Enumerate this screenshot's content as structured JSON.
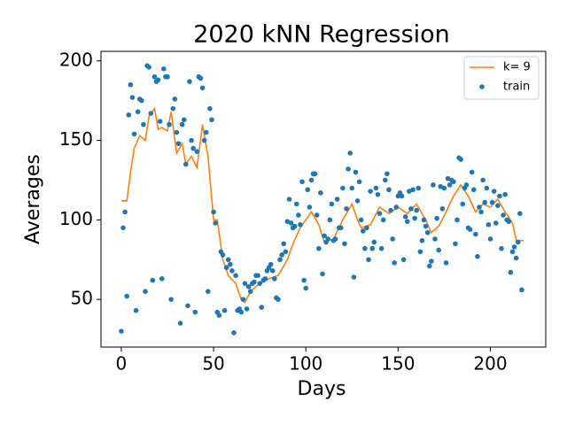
{
  "chart_data": {
    "type": "scatter",
    "title": "2020 kNN Regression",
    "x_label": "Days",
    "y_label": "Averages",
    "xlim": [
      -11,
      230
    ],
    "ylim": [
      20,
      206
    ],
    "xticks": [
      0,
      50,
      100,
      150,
      200
    ],
    "yticks": [
      50,
      100,
      150,
      200
    ],
    "legend": "upper right",
    "series": [
      {
        "name": "k= 9",
        "color": "#ff7f0e",
        "type": "line",
        "x": [
          0,
          3,
          5,
          7,
          10,
          13,
          15,
          18,
          20,
          22,
          25,
          27,
          30,
          33,
          35,
          38,
          41,
          44,
          47,
          50,
          52,
          55,
          58,
          62,
          65,
          67,
          70,
          75,
          80,
          85,
          90,
          93,
          97,
          100,
          103,
          107,
          110,
          115,
          120,
          125,
          128,
          130,
          135,
          140,
          145,
          150,
          155,
          160,
          165,
          168,
          172,
          176,
          180,
          184,
          188,
          192,
          196,
          200,
          204,
          208,
          212,
          214,
          218
        ],
        "values": [
          112,
          112,
          130,
          145,
          153,
          150,
          165,
          170,
          157,
          158,
          156,
          168,
          142,
          148,
          135,
          140,
          133,
          160,
          140,
          100,
          100,
          75,
          65,
          60,
          50,
          48,
          55,
          60,
          63,
          65,
          75,
          85,
          95,
          100,
          105,
          97,
          86,
          88,
          100,
          110,
          100,
          95,
          97,
          108,
          104,
          108,
          104,
          110,
          100,
          92,
          96,
          105,
          115,
          122,
          115,
          105,
          110,
          108,
          113,
          105,
          98,
          87,
          87
        ]
      },
      {
        "name": "train",
        "color": "#1f77b4",
        "type": "scatter",
        "x": [
          0,
          1,
          2,
          3,
          4,
          5,
          6,
          7,
          8,
          9,
          10,
          11,
          12,
          13,
          14,
          15,
          16,
          17,
          18,
          19,
          20,
          21,
          22,
          23,
          24,
          25,
          26,
          27,
          28,
          29,
          30,
          31,
          32,
          33,
          34,
          35,
          36,
          37,
          38,
          39,
          40,
          41,
          42,
          43,
          44,
          45,
          46,
          47,
          48,
          49,
          50,
          51,
          52,
          53,
          54,
          55,
          56,
          57,
          58,
          59,
          60,
          61,
          62,
          63,
          64,
          65,
          66,
          67,
          68,
          69,
          70,
          71,
          72,
          73,
          74,
          75,
          76,
          77,
          78,
          79,
          80,
          81,
          82,
          83,
          84,
          85,
          86,
          87,
          88,
          89,
          90,
          91,
          92,
          93,
          94,
          95,
          96,
          97,
          98,
          99,
          100,
          101,
          102,
          103,
          104,
          105,
          106,
          107,
          108,
          109,
          110,
          111,
          112,
          113,
          114,
          115,
          116,
          117,
          118,
          119,
          120,
          121,
          122,
          123,
          124,
          125,
          126,
          127,
          128,
          129,
          130,
          131,
          132,
          133,
          134,
          135,
          136,
          137,
          138,
          139,
          140,
          141,
          142,
          143,
          144,
          145,
          146,
          147,
          148,
          149,
          150,
          151,
          152,
          153,
          154,
          155,
          156,
          157,
          158,
          159,
          160,
          161,
          162,
          163,
          164,
          165,
          166,
          167,
          168,
          169,
          170,
          171,
          172,
          173,
          174,
          175,
          176,
          177,
          178,
          179,
          180,
          181,
          182,
          183,
          184,
          185,
          186,
          187,
          188,
          189,
          190,
          191,
          192,
          193,
          194,
          195,
          196,
          197,
          198,
          199,
          200,
          201,
          202,
          203,
          204,
          205,
          206,
          207,
          208,
          209,
          210,
          211,
          212,
          213,
          214,
          215,
          216,
          217
        ],
        "values": [
          30,
          95,
          105,
          52,
          166,
          185,
          177,
          154,
          43,
          168,
          176,
          175,
          160,
          55,
          197,
          196,
          167,
          62,
          190,
          187,
          188,
          162,
          63,
          195,
          190,
          190,
          160,
          50,
          170,
          176,
          155,
          148,
          35,
          160,
          163,
          135,
          46,
          187,
          150,
          145,
          42,
          143,
          190,
          189,
          183,
          150,
          155,
          55,
          170,
          163,
          105,
          98,
          42,
          40,
          80,
          78,
          43,
          70,
          75,
          72,
          68,
          29,
          65,
          43,
          44,
          42,
          50,
          60,
          44,
          58,
          55,
          60,
          61,
          65,
          65,
          60,
          45,
          62,
          63,
          68,
          70,
          72,
          68,
          63,
          51,
          50,
          75,
          78,
          85,
          80,
          99,
          113,
          98,
          95,
          96,
          110,
          103,
          97,
          124,
          62,
          57,
          119,
          108,
          125,
          129,
          129,
          103,
          82,
          117,
          66,
          90,
          86,
          88,
          100,
          110,
          87,
          88,
          113,
          95,
          95,
          120,
          85,
          107,
          132,
          142,
          120,
          64,
          130,
          112,
          124,
          100,
          93,
          82,
          95,
          75,
          118,
          82,
          86,
          120,
          116,
          104,
          82,
          100,
          125,
          129,
          119,
          106,
          88,
          73,
          108,
          115,
          117,
          115,
          75,
          102,
          99,
          118,
          107,
          119,
          101,
          106,
          120,
          80,
          87,
          100,
          96,
          92,
          71,
          74,
          122,
          88,
          101,
          81,
          121,
          107,
          120,
          73,
          126,
          122,
          125,
          124,
          85,
          100,
          139,
          138,
          110,
          120,
          122,
          95,
          94,
          130,
          119,
          91,
          77,
          108,
          105,
          125,
          111,
          120,
          97,
          88,
          111,
          118,
          98,
          109,
          115,
          82,
          103,
          116,
          100,
          99,
          67,
          80,
          83,
          76,
          86,
          104,
          56
        ]
      }
    ]
  }
}
